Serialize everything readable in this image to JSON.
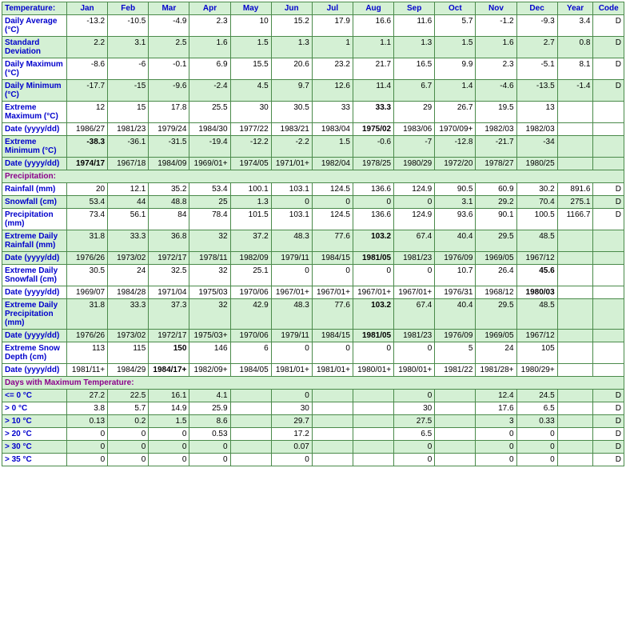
{
  "colors": {
    "shade_bg": "#d4f0d4",
    "border": "#4a8a4a",
    "header_text": "#0000cc",
    "section_text": "#8b008b",
    "value_text": "#000000"
  },
  "headers": {
    "label": "Temperature:",
    "months": [
      "Jan",
      "Feb",
      "Mar",
      "Apr",
      "May",
      "Jun",
      "Jul",
      "Aug",
      "Sep",
      "Oct",
      "Nov",
      "Dec"
    ],
    "year": "Year",
    "code": "Code"
  },
  "sections": {
    "precip": "Precipitation:",
    "maxtemp": "Days with Maximum Temperature:"
  },
  "rows": [
    {
      "k": "davg",
      "label": "Daily Average (°C)",
      "shade": false,
      "v": [
        "-13.2",
        "-10.5",
        "-4.9",
        "2.3",
        "10",
        "15.2",
        "17.9",
        "16.6",
        "11.6",
        "5.7",
        "-1.2",
        "-9.3",
        "3.4",
        "D"
      ]
    },
    {
      "k": "stdev",
      "label": "Standard Deviation",
      "shade": true,
      "v": [
        "2.2",
        "3.1",
        "2.5",
        "1.6",
        "1.5",
        "1.3",
        "1",
        "1.1",
        "1.3",
        "1.5",
        "1.6",
        "2.7",
        "0.8",
        "D"
      ]
    },
    {
      "k": "dmax",
      "label": "Daily Maximum (°C)",
      "shade": false,
      "v": [
        "-8.6",
        "-6",
        "-0.1",
        "6.9",
        "15.5",
        "20.6",
        "23.2",
        "21.7",
        "16.5",
        "9.9",
        "2.3",
        "-5.1",
        "8.1",
        "D"
      ]
    },
    {
      "k": "dmin",
      "label": "Daily Minimum (°C)",
      "shade": true,
      "v": [
        "-17.7",
        "-15",
        "-9.6",
        "-2.4",
        "4.5",
        "9.7",
        "12.6",
        "11.4",
        "6.7",
        "1.4",
        "-4.6",
        "-13.5",
        "-1.4",
        "D"
      ]
    },
    {
      "k": "exmax",
      "label": "Extreme Maximum (°C)",
      "shade": false,
      "v": [
        "12",
        "15",
        "17.8",
        "25.5",
        "30",
        "30.5",
        "33",
        "33.3",
        "29",
        "26.7",
        "19.5",
        "13",
        "",
        ""
      ],
      "bold": [
        7
      ]
    },
    {
      "k": "exmaxd",
      "label": "Date (yyyy/dd)",
      "shade": false,
      "v": [
        "1986/27",
        "1981/23",
        "1979/24",
        "1984/30",
        "1977/22",
        "1983/21",
        "1983/04",
        "1975/02",
        "1983/06",
        "1970/09+",
        "1982/03",
        "1982/03",
        "",
        ""
      ],
      "bold": [
        7
      ]
    },
    {
      "k": "exmin",
      "label": "Extreme Minimum (°C)",
      "shade": true,
      "v": [
        "-38.3",
        "-36.1",
        "-31.5",
        "-19.4",
        "-12.2",
        "-2.2",
        "1.5",
        "-0.6",
        "-7",
        "-12.8",
        "-21.7",
        "-34",
        "",
        ""
      ],
      "bold": [
        0
      ]
    },
    {
      "k": "exmind",
      "label": "Date (yyyy/dd)",
      "shade": true,
      "v": [
        "1974/17",
        "1967/18",
        "1984/09",
        "1969/01+",
        "1974/05",
        "1971/01+",
        "1982/04",
        "1978/25",
        "1980/29",
        "1972/20",
        "1978/27",
        "1980/25",
        "",
        ""
      ],
      "bold": [
        0
      ]
    },
    {
      "k": "rain",
      "label": "Rainfall (mm)",
      "shade": false,
      "v": [
        "20",
        "12.1",
        "35.2",
        "53.4",
        "100.1",
        "103.1",
        "124.5",
        "136.6",
        "124.9",
        "90.5",
        "60.9",
        "30.2",
        "891.6",
        "D"
      ]
    },
    {
      "k": "snow",
      "label": "Snowfall (cm)",
      "shade": true,
      "v": [
        "53.4",
        "44",
        "48.8",
        "25",
        "1.3",
        "0",
        "0",
        "0",
        "0",
        "3.1",
        "29.2",
        "70.4",
        "275.1",
        "D"
      ]
    },
    {
      "k": "precip",
      "label": "Precipitation (mm)",
      "shade": false,
      "v": [
        "73.4",
        "56.1",
        "84",
        "78.4",
        "101.5",
        "103.1",
        "124.5",
        "136.6",
        "124.9",
        "93.6",
        "90.1",
        "100.5",
        "1166.7",
        "D"
      ]
    },
    {
      "k": "exrain",
      "label": "Extreme Daily Rainfall (mm)",
      "shade": true,
      "v": [
        "31.8",
        "33.3",
        "36.8",
        "32",
        "37.2",
        "48.3",
        "77.6",
        "103.2",
        "67.4",
        "40.4",
        "29.5",
        "48.5",
        "",
        ""
      ],
      "bold": [
        7
      ]
    },
    {
      "k": "exraind",
      "label": "Date (yyyy/dd)",
      "shade": true,
      "v": [
        "1976/26",
        "1973/02",
        "1972/17",
        "1978/11",
        "1982/09",
        "1979/11",
        "1984/15",
        "1981/05",
        "1981/23",
        "1976/09",
        "1969/05",
        "1967/12",
        "",
        ""
      ],
      "bold": [
        7
      ]
    },
    {
      "k": "exsnow",
      "label": "Extreme Daily Snowfall (cm)",
      "shade": false,
      "v": [
        "30.5",
        "24",
        "32.5",
        "32",
        "25.1",
        "0",
        "0",
        "0",
        "0",
        "10.7",
        "26.4",
        "45.6",
        "",
        ""
      ],
      "bold": [
        11
      ]
    },
    {
      "k": "exsnowd",
      "label": "Date (yyyy/dd)",
      "shade": false,
      "v": [
        "1969/07",
        "1984/28",
        "1971/04",
        "1975/03",
        "1970/06",
        "1967/01+",
        "1967/01+",
        "1967/01+",
        "1967/01+",
        "1976/31",
        "1968/12",
        "1980/03",
        "",
        ""
      ],
      "bold": [
        11
      ]
    },
    {
      "k": "exprecip",
      "label": "Extreme Daily Precipitation (mm)",
      "shade": true,
      "v": [
        "31.8",
        "33.3",
        "37.3",
        "32",
        "42.9",
        "48.3",
        "77.6",
        "103.2",
        "67.4",
        "40.4",
        "29.5",
        "48.5",
        "",
        ""
      ],
      "bold": [
        7
      ]
    },
    {
      "k": "exprecipd",
      "label": "Date (yyyy/dd)",
      "shade": true,
      "v": [
        "1976/26",
        "1973/02",
        "1972/17",
        "1975/03+",
        "1970/06",
        "1979/11",
        "1984/15",
        "1981/05",
        "1981/23",
        "1976/09",
        "1969/05",
        "1967/12",
        "",
        ""
      ],
      "bold": [
        7
      ]
    },
    {
      "k": "exdepth",
      "label": "Extreme Snow Depth (cm)",
      "shade": false,
      "v": [
        "113",
        "115",
        "150",
        "146",
        "6",
        "0",
        "0",
        "0",
        "0",
        "5",
        "24",
        "105",
        "",
        ""
      ],
      "bold": [
        2
      ]
    },
    {
      "k": "exdepthd",
      "label": "Date (yyyy/dd)",
      "shade": false,
      "v": [
        "1981/11+",
        "1984/29",
        "1984/17+",
        "1982/09+",
        "1984/05",
        "1981/01+",
        "1981/01+",
        "1980/01+",
        "1980/01+",
        "1981/22",
        "1981/28+",
        "1980/29+",
        "",
        ""
      ],
      "bold": [
        2
      ]
    },
    {
      "k": "le0",
      "label": "<= 0 °C",
      "shade": true,
      "v": [
        "27.2",
        "22.5",
        "16.1",
        "4.1",
        "",
        "0",
        "",
        "",
        "0",
        "",
        "12.4",
        "24.5",
        "",
        "D"
      ]
    },
    {
      "k": "gt0",
      "label": "> 0 °C",
      "shade": false,
      "v": [
        "3.8",
        "5.7",
        "14.9",
        "25.9",
        "",
        "30",
        "",
        "",
        "30",
        "",
        "17.6",
        "6.5",
        "",
        "D"
      ]
    },
    {
      "k": "gt10",
      "label": "> 10 °C",
      "shade": true,
      "v": [
        "0.13",
        "0.2",
        "1.5",
        "8.6",
        "",
        "29.7",
        "",
        "",
        "27.5",
        "",
        "3",
        "0.33",
        "",
        "D"
      ]
    },
    {
      "k": "gt20",
      "label": "> 20 °C",
      "shade": false,
      "v": [
        "0",
        "0",
        "0",
        "0.53",
        "",
        "17.2",
        "",
        "",
        "6.5",
        "",
        "0",
        "0",
        "",
        "D"
      ]
    },
    {
      "k": "gt30",
      "label": "> 30 °C",
      "shade": true,
      "v": [
        "0",
        "0",
        "0",
        "0",
        "",
        "0.07",
        "",
        "",
        "0",
        "",
        "0",
        "0",
        "",
        "D"
      ]
    },
    {
      "k": "gt35",
      "label": "> 35 °C",
      "shade": false,
      "v": [
        "0",
        "0",
        "0",
        "0",
        "",
        "0",
        "",
        "",
        "0",
        "",
        "0",
        "0",
        "",
        "D"
      ]
    }
  ]
}
